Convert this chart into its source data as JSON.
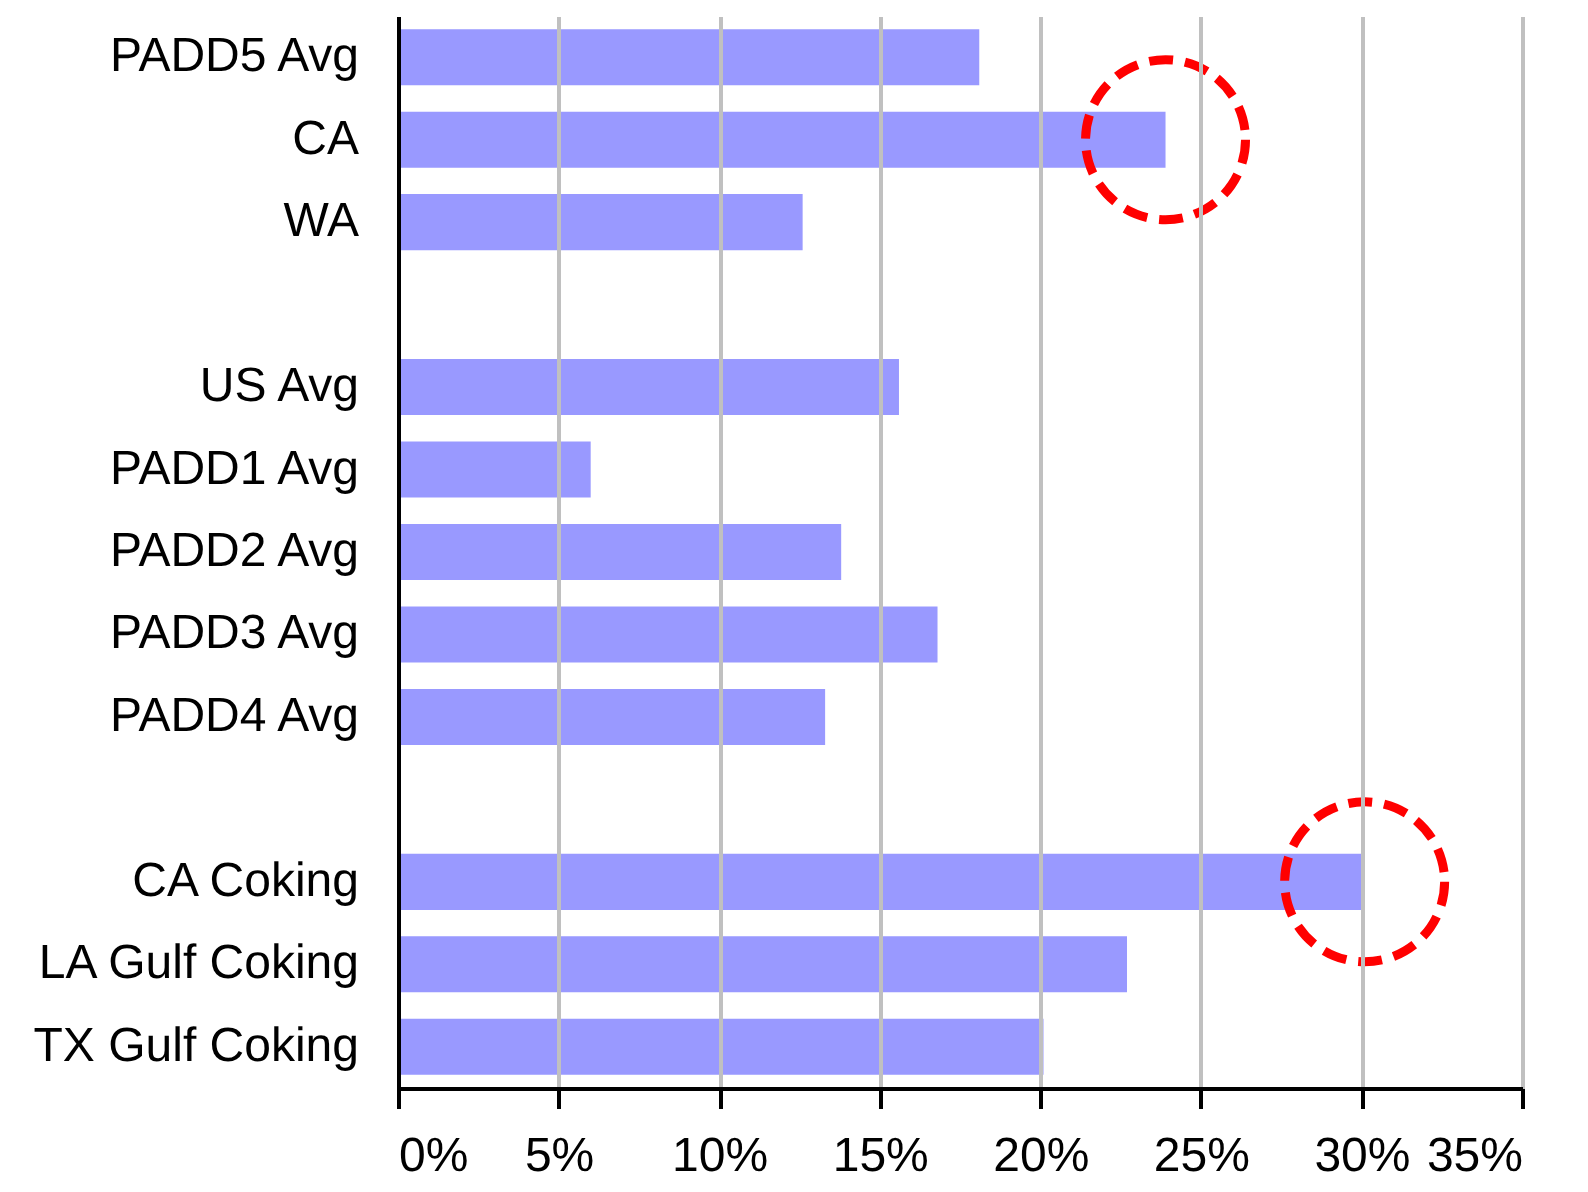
{
  "chart_data": {
    "type": "bar",
    "orientation": "horizontal",
    "categories": [
      "PADD5 Avg",
      "CA",
      "WA",
      null,
      "US Avg",
      "PADD1 Avg",
      "PADD2 Avg",
      "PADD3 Avg",
      "PADD4 Avg",
      null,
      "CA Coking",
      "LA Gulf Coking",
      "TX Gulf Coking"
    ],
    "values": [
      18.1,
      23.9,
      12.6,
      null,
      15.6,
      6.0,
      13.8,
      16.8,
      13.3,
      null,
      30.1,
      22.7,
      20.1
    ],
    "color": "#9999ff",
    "xlim": [
      0,
      35
    ],
    "xticks": [
      {
        "value": 0,
        "label": "0%"
      },
      {
        "value": 5,
        "label": "5%"
      },
      {
        "value": 10,
        "label": "10%"
      },
      {
        "value": 15,
        "label": "15%"
      },
      {
        "value": 20,
        "label": "20%"
      },
      {
        "value": 25,
        "label": "25%"
      },
      {
        "value": 30,
        "label": "30%"
      },
      {
        "value": 35,
        "label": "35%"
      }
    ],
    "grid": "x",
    "annotations": [
      {
        "y": "CA"
      },
      {
        "y": "CA Coking"
      }
    ]
  }
}
